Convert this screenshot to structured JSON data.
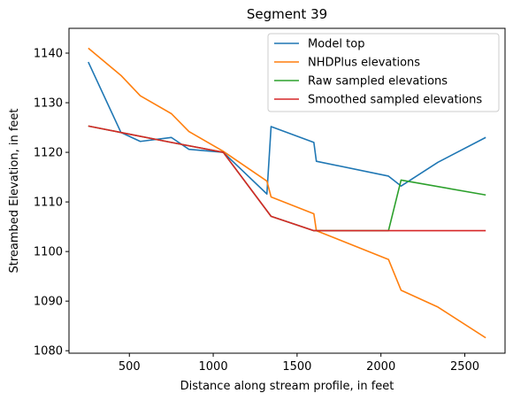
{
  "chart_data": {
    "type": "line",
    "title": "Segment 39",
    "xlabel": "Distance along stream profile, in feet",
    "ylabel": "Streambed Elevation, in feet",
    "xlim": [
      140,
      2740
    ],
    "ylim": [
      1079.5,
      1145
    ],
    "xticks": [
      500,
      1000,
      1500,
      2000,
      2500
    ],
    "yticks": [
      1080,
      1090,
      1100,
      1110,
      1120,
      1130,
      1140
    ],
    "grid": false,
    "legend_position": "top-right",
    "series": [
      {
        "name": "Model top",
        "color": "#1f77b4",
        "x": [
          255,
          450,
          565,
          750,
          855,
          1060,
          1320,
          1345,
          1600,
          1615,
          2045,
          2120,
          2340,
          2625
        ],
        "y": [
          1138.2,
          1124.0,
          1122.2,
          1123.0,
          1120.6,
          1120.0,
          1111.6,
          1125.2,
          1122.0,
          1118.2,
          1115.2,
          1113.2,
          1118.0,
          1123.0
        ]
      },
      {
        "name": "NHDPlus elevations",
        "color": "#ff7f0e",
        "x": [
          255,
          450,
          565,
          750,
          855,
          1060,
          1320,
          1345,
          1600,
          1615,
          2045,
          2120,
          2340,
          2625
        ],
        "y": [
          1141.0,
          1135.5,
          1131.4,
          1127.8,
          1124.2,
          1120.2,
          1114.2,
          1111.0,
          1107.6,
          1104.2,
          1098.4,
          1092.2,
          1088.8,
          1082.6
        ]
      },
      {
        "name": "Raw sampled elevations",
        "color": "#2ca02c",
        "x": [
          255,
          450,
          750,
          1060,
          1345,
          1600,
          1615,
          2045,
          2120,
          2625
        ],
        "y": [
          1125.3,
          1124.0,
          1122.0,
          1120.0,
          1107.1,
          1104.2,
          1104.2,
          1104.2,
          1114.4,
          1111.4
        ]
      },
      {
        "name": "Smoothed sampled elevations",
        "color": "#d62728",
        "x": [
          255,
          450,
          750,
          1060,
          1345,
          1600,
          1615,
          2045,
          2625
        ],
        "y": [
          1125.3,
          1124.0,
          1122.0,
          1120.0,
          1107.1,
          1104.2,
          1104.2,
          1104.2,
          1104.2
        ]
      }
    ]
  }
}
